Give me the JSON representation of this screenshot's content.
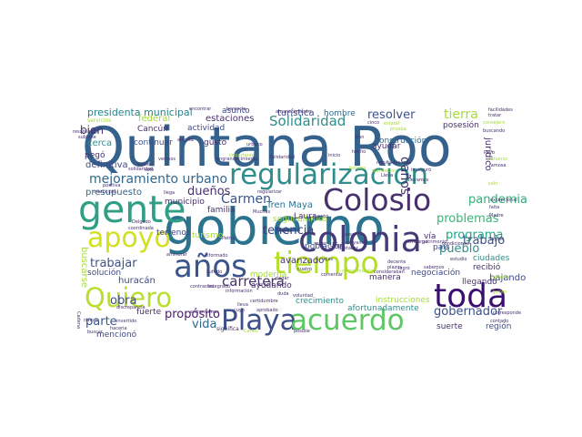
{
  "cloud": {
    "words": [
      {
        "text": "Quintana Roo",
        "color": "#35618d"
      },
      {
        "text": "regularización",
        "color": "#2f8e8c"
      },
      {
        "text": "gobierno",
        "color": "#2b738e"
      },
      {
        "text": "gente",
        "color": "#2f9f86"
      },
      {
        "text": "Colosio",
        "color": "#46306d"
      },
      {
        "text": "apoyo",
        "color": "#d3e01f"
      },
      {
        "text": "tiempo",
        "color": "#b5de2b"
      },
      {
        "text": "colonia",
        "color": "#463b7a"
      },
      {
        "text": "años",
        "color": "#3a548c"
      },
      {
        "text": "toda",
        "color": "#3b0f70"
      },
      {
        "text": "Quiero",
        "color": "#bade2b"
      },
      {
        "text": "Playa",
        "color": "#3e5089"
      },
      {
        "text": "acuerdo",
        "color": "#5dc764"
      },
      {
        "text": "carretera",
        "color": "#46306d"
      },
      {
        "text": "Solidaridad",
        "color": "#2f8e8c"
      },
      {
        "text": "mejoramiento urbano",
        "color": "#31688e"
      },
      {
        "text": "Carmen",
        "color": "#3a548c"
      },
      {
        "text": "dueños",
        "color": "#46306d"
      },
      {
        "text": "tenencia",
        "color": "#3e3d82"
      },
      {
        "text": "propósito",
        "color": "#481b6d"
      },
      {
        "text": "trabajar",
        "color": "#3b528b"
      },
      {
        "text": "parte",
        "color": "#3a548c"
      },
      {
        "text": "obra",
        "color": "#3e4989"
      },
      {
        "text": "vida",
        "color": "#31688e"
      },
      {
        "text": "resolver",
        "color": "#3b528b"
      },
      {
        "text": "tierra",
        "color": "#a5db36"
      },
      {
        "text": "daños",
        "color": "#46306d"
      },
      {
        "text": "pandemia",
        "color": "#2db27d"
      },
      {
        "text": "programa",
        "color": "#20a386"
      },
      {
        "text": "problemas",
        "color": "#34b679"
      },
      {
        "text": "pueblo",
        "color": "#2f8e8c"
      },
      {
        "text": "trabajo",
        "color": "#3b528b"
      },
      {
        "text": "gobernador",
        "color": "#3b528b"
      },
      {
        "text": "bien",
        "color": "#46306d"
      },
      {
        "text": "presidenta municipal",
        "color": "#26828e"
      },
      {
        "text": "Tren Maya",
        "color": "#2c728e"
      },
      {
        "text": "turística",
        "color": "#3e4989"
      },
      {
        "text": "construcción",
        "color": "#31688e"
      },
      {
        "text": "estaciones",
        "color": "#46306d"
      },
      {
        "text": "posesión",
        "color": "#46306d"
      },
      {
        "text": "jurídico",
        "color": "#46306d"
      },
      {
        "text": "hombre",
        "color": "#31688e"
      },
      {
        "text": "asunto",
        "color": "#3e4989"
      },
      {
        "text": "ayudar",
        "color": "#46306d"
      },
      {
        "text": "federal",
        "color": "#a0da39"
      },
      {
        "text": "cerca",
        "color": "#2f8e8c"
      },
      {
        "text": "pegó",
        "color": "#46306d"
      },
      {
        "text": "continuar",
        "color": "#3a548c"
      },
      {
        "text": "gusto",
        "color": "#46306d"
      },
      {
        "text": "definitiva",
        "color": "#3e4989"
      },
      {
        "text": "presupuesto",
        "color": "#31688e"
      },
      {
        "text": "municipio",
        "color": "#46306d"
      },
      {
        "text": "familia",
        "color": "#46306d"
      },
      {
        "text": "seguir",
        "color": "#a5db36"
      },
      {
        "text": "últimos",
        "color": "#a5db36"
      },
      {
        "text": "Laura",
        "color": "#46306d"
      },
      {
        "text": "población",
        "color": "#3e4989"
      },
      {
        "text": "país",
        "color": "#3e4989"
      },
      {
        "text": "vía",
        "color": "#46306d"
      },
      {
        "text": "ciudades",
        "color": "#2f8e8c"
      },
      {
        "text": "recibió",
        "color": "#46306d"
      },
      {
        "text": "llegando",
        "color": "#46306d"
      },
      {
        "text": "bajando",
        "color": "#3e4989"
      },
      {
        "text": "solución",
        "color": "#3e4989"
      },
      {
        "text": "huracán",
        "color": "#3e4989"
      },
      {
        "text": "avanzado",
        "color": "#46306d"
      },
      {
        "text": "terrenos",
        "color": "#3e4989"
      },
      {
        "text": "moderna",
        "color": "#a5db36"
      },
      {
        "text": "ayudando",
        "color": "#46306d"
      },
      {
        "text": "crecimiento",
        "color": "#2f8e8c"
      },
      {
        "text": "instrucciones",
        "color": "#a5db36"
      },
      {
        "text": "afortunadamente",
        "color": "#2f8e8c"
      },
      {
        "text": "negociación",
        "color": "#3e4989"
      },
      {
        "text": "manera",
        "color": "#46306d"
      },
      {
        "text": "suerte",
        "color": "#46306d"
      },
      {
        "text": "región",
        "color": "#3e4989"
      },
      {
        "text": "fuerte",
        "color": "#46306d"
      },
      {
        "text": "mencionó",
        "color": "#3e4989"
      },
      {
        "text": "Cancún",
        "color": "#46306d"
      },
      {
        "text": "actividad",
        "color": "#3e4989"
      },
      {
        "text": "buscarse",
        "color": "#a5db36"
      },
      {
        "text": "turismo",
        "color": "#a5db36"
      },
      {
        "text": "servicios",
        "color": "#a5db36"
      },
      {
        "text": "resolviendo",
        "color": "#46306d"
      },
      {
        "text": "ahorita",
        "color": "#46306d"
      },
      {
        "text": "sublime",
        "color": "#46306d"
      },
      {
        "text": "engrandecimiento",
        "color": "#46306d"
      },
      {
        "text": "encontrar",
        "color": "#46306d"
      },
      {
        "text": "herencia",
        "color": "#46306d"
      },
      {
        "text": "amanecimiento",
        "color": "#46306d"
      },
      {
        "text": "facilidades",
        "color": "#46306d"
      },
      {
        "text": "tratar",
        "color": "#46306d"
      },
      {
        "text": "consejero",
        "color": "#a5db36"
      },
      {
        "text": "buscando",
        "color": "#46306d"
      },
      {
        "text": "Payo",
        "color": "#46306d"
      },
      {
        "text": "esfuerzo",
        "color": "#a5db36"
      },
      {
        "text": "famosa",
        "color": "#46306d"
      },
      {
        "text": "salir",
        "color": "#a5db36"
      },
      {
        "text": "excepcional",
        "color": "#46306d"
      },
      {
        "text": "falta",
        "color": "#46306d"
      },
      {
        "text": "Madre",
        "color": "#46306d"
      },
      {
        "text": "lograr",
        "color": "#46306d"
      },
      {
        "text": "médica",
        "color": "#a5db36"
      },
      {
        "text": "quinto",
        "color": "#a5db36"
      },
      {
        "text": "corresponde",
        "color": "#46306d"
      },
      {
        "text": "contado",
        "color": "#46306d"
      },
      {
        "text": "posible",
        "color": "#46306d"
      },
      {
        "text": "Carlos",
        "color": "#a5db36"
      },
      {
        "text": "significa",
        "color": "#46306d"
      },
      {
        "text": "haceria",
        "color": "#46306d"
      },
      {
        "text": "buscar",
        "color": "#46306d"
      },
      {
        "text": "nuevo",
        "color": "#46306d"
      },
      {
        "text": "discrepancia",
        "color": "#46306d"
      },
      {
        "text": "Cadena",
        "color": "#46306d"
      },
      {
        "text": "invertido",
        "color": "#46306d"
      },
      {
        "text": "coordinada",
        "color": "#46306d"
      },
      {
        "text": "aminorar",
        "color": "#46306d"
      },
      {
        "text": "informado",
        "color": "#46306d"
      },
      {
        "text": "integrado",
        "color": "#46306d"
      },
      {
        "text": "Meyer",
        "color": "#46306d"
      },
      {
        "text": "cuento",
        "color": "#46306d"
      },
      {
        "text": "saber",
        "color": "#46306d"
      },
      {
        "text": "Llegar",
        "color": "#46306d"
      },
      {
        "text": "pasar",
        "color": "#46306d"
      },
      {
        "text": "destacar",
        "color": "#46306d"
      },
      {
        "text": "apoyando",
        "color": "#46306d"
      },
      {
        "text": "embargo",
        "color": "#46306d"
      },
      {
        "text": "patrimonio",
        "color": "#46306d"
      },
      {
        "text": "condiciones",
        "color": "#46306d"
      },
      {
        "text": "estudio",
        "color": "#46306d"
      },
      {
        "text": "decente",
        "color": "#46306d"
      },
      {
        "text": "plazos",
        "color": "#46306d"
      },
      {
        "text": "logró",
        "color": "#46306d"
      },
      {
        "text": "sabemos",
        "color": "#46306d"
      },
      {
        "text": "cumplimiento",
        "color": "#a5db36"
      },
      {
        "text": "ejes",
        "color": "#46306d"
      },
      {
        "text": "cuatro",
        "color": "#46306d"
      },
      {
        "text": "sufrido",
        "color": "#46306d"
      },
      {
        "text": "contrastes",
        "color": "#46306d"
      },
      {
        "text": "información",
        "color": "#46306d"
      },
      {
        "text": "certidumbre",
        "color": "#46306d"
      },
      {
        "text": "duda",
        "color": "#46306d"
      },
      {
        "text": "voluntad",
        "color": "#46306d"
      },
      {
        "text": "comentar",
        "color": "#46306d"
      },
      {
        "text": "consideraban",
        "color": "#46306d"
      },
      {
        "text": "pagar",
        "color": "#46306d"
      },
      {
        "text": "lleva",
        "color": "#46306d"
      },
      {
        "text": "cuyo",
        "color": "#46306d"
      },
      {
        "text": "aprobado",
        "color": "#46306d"
      },
      {
        "text": "enfrentamos",
        "color": "#46306d"
      },
      {
        "text": "Patria",
        "color": "#46306d"
      },
      {
        "text": "regularizar",
        "color": "#46306d"
      },
      {
        "text": "Muchas",
        "color": "#46306d"
      },
      {
        "text": "Delgado",
        "color": "#46306d"
      },
      {
        "text": "llega",
        "color": "#46306d"
      },
      {
        "text": "municipal",
        "color": "#46306d"
      },
      {
        "text": "positiva",
        "color": "#46306d"
      },
      {
        "text": "legales",
        "color": "#46306d"
      },
      {
        "text": "solidaridad",
        "color": "#46306d"
      },
      {
        "text": "sólo",
        "color": "#46306d"
      },
      {
        "text": "vecinos",
        "color": "#46306d"
      },
      {
        "text": "inicio",
        "color": "#46306d"
      },
      {
        "text": "hoteles",
        "color": "#a5db36"
      },
      {
        "text": "planeación",
        "color": "#a5db36"
      },
      {
        "text": "Lleva",
        "color": "#46306d"
      },
      {
        "text": "hecho",
        "color": "#46306d"
      },
      {
        "text": "resultados",
        "color": "#46306d"
      },
      {
        "text": "inauguró",
        "color": "#46306d"
      },
      {
        "text": "importante",
        "color": "#a5db36"
      },
      {
        "text": "urbano",
        "color": "#46306d"
      },
      {
        "text": "Solidaridad",
        "color": "#46306d"
      },
      {
        "text": "dan",
        "color": "#46306d"
      },
      {
        "text": "llevamos",
        "color": "#46306d"
      },
      {
        "text": "prueba",
        "color": "#a5db36"
      },
      {
        "text": "cinco",
        "color": "#46306d"
      },
      {
        "text": "estatal",
        "color": "#a5db36"
      },
      {
        "text": "entregas",
        "color": "#46306d"
      },
      {
        "text": "Román",
        "color": "#46306d"
      },
      {
        "text": "Vizarras",
        "color": "#46306d"
      }
    ]
  }
}
